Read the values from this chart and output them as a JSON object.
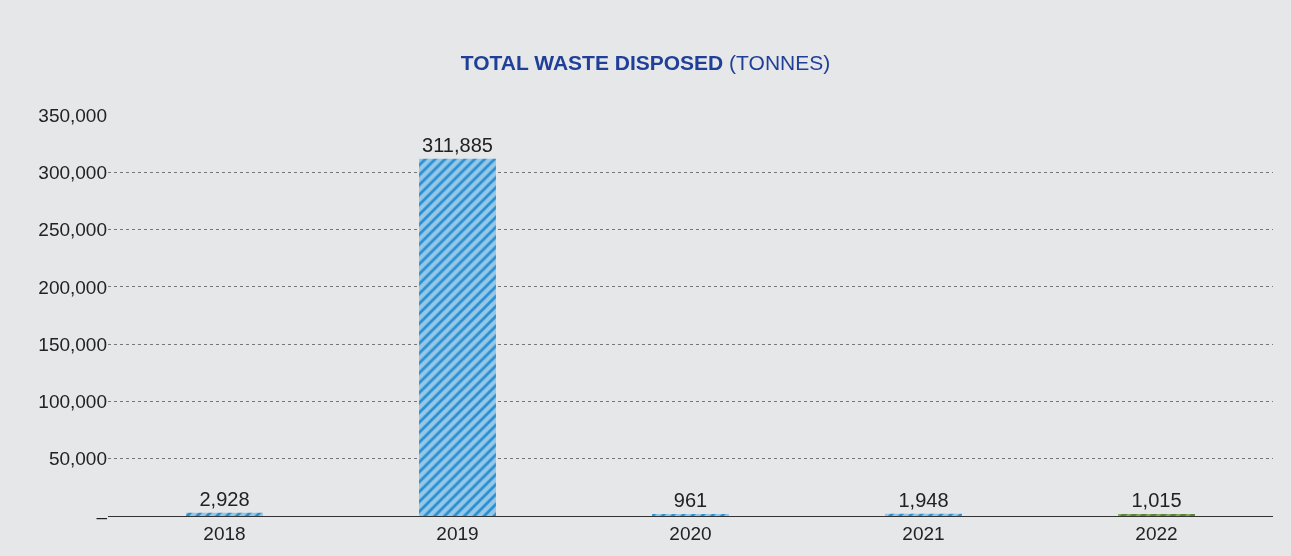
{
  "chart_data": {
    "type": "bar",
    "title": "TOTAL WASTE DISPOSED",
    "subtitle": "(TONNES)",
    "categories": [
      "2018",
      "2019",
      "2020",
      "2021",
      "2022"
    ],
    "values": [
      2928,
      311885,
      961,
      1948,
      1015
    ],
    "value_labels": [
      "2,928",
      "311,885",
      "961",
      "1,948",
      "1,015"
    ],
    "colors": [
      "#2a8fd0",
      "#2a8fd0",
      "#2a8fd0",
      "#2a8fd0",
      "#7ab648"
    ],
    "ylim": [
      0,
      350000
    ],
    "yticks": [
      {
        "value": 0,
        "label": "–"
      },
      {
        "value": 50000,
        "label": "50,000"
      },
      {
        "value": 100000,
        "label": "100,000"
      },
      {
        "value": 150000,
        "label": "150,000"
      },
      {
        "value": 200000,
        "label": "200,000"
      },
      {
        "value": 250000,
        "label": "250,000"
      },
      {
        "value": 300000,
        "label": "300,000"
      },
      {
        "value": 350000,
        "label": "350,000"
      }
    ],
    "grid": "y"
  }
}
